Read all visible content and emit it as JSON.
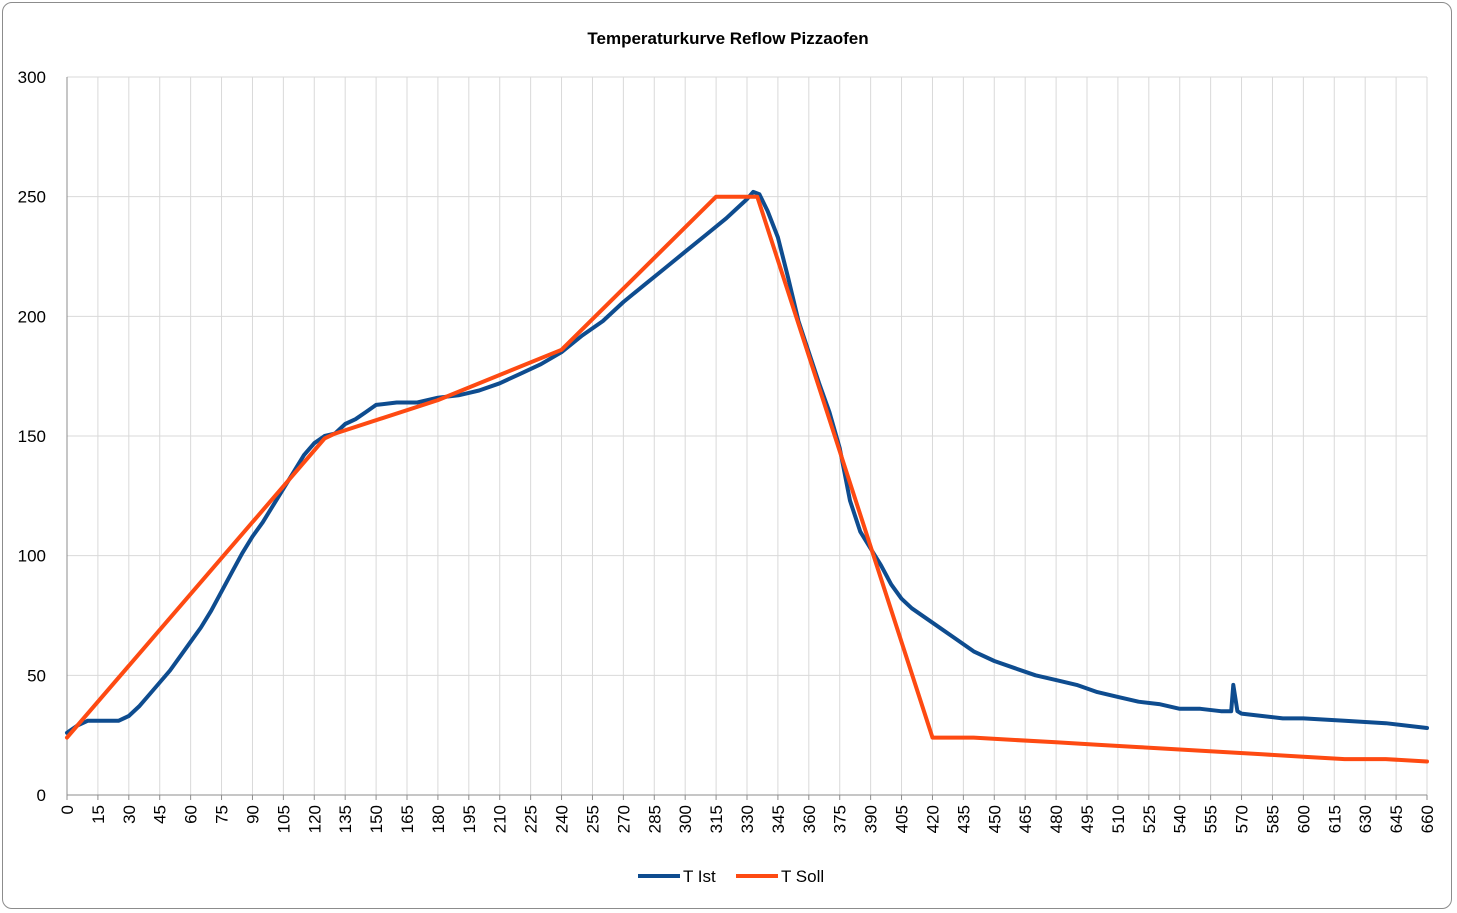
{
  "chart_data": {
    "type": "line",
    "title": "Temperaturkurve Reflow Pizzaofen",
    "xlabel": "",
    "ylabel": "",
    "xlim": [
      0,
      660
    ],
    "ylim": [
      0,
      300
    ],
    "x_ticks": [
      0,
      15,
      30,
      45,
      60,
      75,
      90,
      105,
      120,
      135,
      150,
      165,
      180,
      195,
      210,
      225,
      240,
      255,
      270,
      285,
      300,
      315,
      330,
      345,
      360,
      375,
      390,
      405,
      420,
      435,
      450,
      465,
      480,
      495,
      510,
      525,
      540,
      555,
      570,
      585,
      600,
      615,
      630,
      645,
      660
    ],
    "y_ticks": [
      0,
      50,
      100,
      150,
      200,
      250,
      300
    ],
    "grid": true,
    "legend_position": "bottom",
    "series": [
      {
        "name": "T Ist",
        "color": "#0e4c8f",
        "x": [
          0,
          5,
          10,
          15,
          20,
          25,
          30,
          35,
          40,
          45,
          50,
          55,
          60,
          65,
          70,
          75,
          80,
          85,
          90,
          95,
          100,
          105,
          110,
          115,
          120,
          125,
          130,
          135,
          140,
          145,
          150,
          160,
          170,
          175,
          180,
          190,
          195,
          200,
          210,
          220,
          230,
          240,
          250,
          260,
          270,
          280,
          290,
          300,
          310,
          320,
          325,
          330,
          333,
          336,
          340,
          345,
          350,
          355,
          360,
          365,
          370,
          375,
          380,
          385,
          390,
          395,
          400,
          405,
          410,
          420,
          430,
          440,
          450,
          460,
          470,
          480,
          490,
          500,
          510,
          520,
          530,
          540,
          550,
          560,
          565,
          566,
          568,
          570,
          580,
          590,
          600,
          620,
          640,
          660
        ],
        "y": [
          26,
          29,
          31,
          31,
          31,
          31,
          33,
          37,
          42,
          47,
          52,
          58,
          64,
          70,
          77,
          85,
          93,
          101,
          108,
          114,
          121,
          128,
          135,
          142,
          147,
          150,
          151,
          155,
          157,
          160,
          163,
          164,
          164,
          165,
          166,
          167,
          168,
          169,
          172,
          176,
          180,
          185,
          192,
          198,
          206,
          213,
          220,
          227,
          234,
          241,
          245,
          249,
          252,
          251,
          244,
          233,
          216,
          198,
          185,
          172,
          160,
          145,
          123,
          110,
          103,
          96,
          88,
          82,
          78,
          72,
          66,
          60,
          56,
          53,
          50,
          48,
          46,
          43,
          41,
          39,
          38,
          36,
          36,
          35,
          35,
          46,
          35,
          34,
          33,
          32,
          32,
          31,
          30,
          28
        ]
      },
      {
        "name": "T Soll",
        "color": "#fe4a12",
        "x": [
          0,
          125,
          130,
          180,
          240,
          315,
          335,
          420,
          440,
          460,
          480,
          500,
          520,
          540,
          560,
          580,
          600,
          620,
          640,
          660
        ],
        "y": [
          24,
          149,
          151,
          165,
          186,
          250,
          250,
          24,
          24,
          23,
          22,
          21,
          20,
          19,
          18,
          17,
          16,
          15,
          15,
          14
        ]
      }
    ]
  }
}
